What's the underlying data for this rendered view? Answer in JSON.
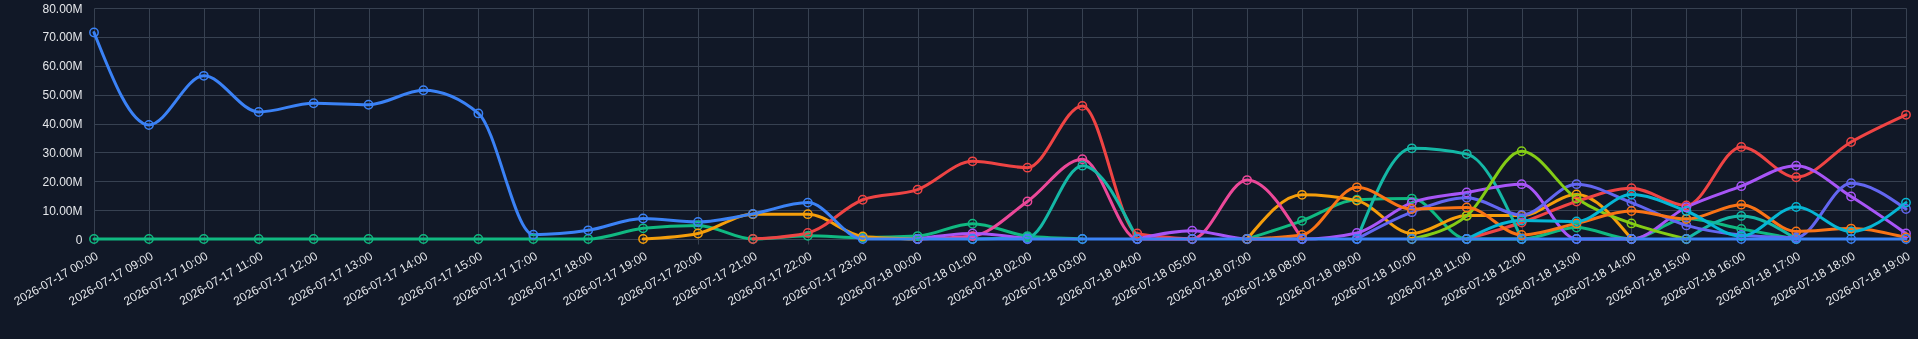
{
  "chart_data": {
    "type": "line",
    "categories": [
      "2026-07-17 00:00",
      "2026-07-17 09:00",
      "2026-07-17 10:00",
      "2026-07-17 11:00",
      "2026-07-17 12:00",
      "2026-07-17 13:00",
      "2026-07-17 14:00",
      "2026-07-17 15:00",
      "2026-07-17 17:00",
      "2026-07-17 18:00",
      "2026-07-17 19:00",
      "2026-07-17 20:00",
      "2026-07-17 21:00",
      "2026-07-17 22:00",
      "2026-07-17 23:00",
      "2026-07-18 00:00",
      "2026-07-18 01:00",
      "2026-07-18 02:00",
      "2026-07-18 03:00",
      "2026-07-18 04:00",
      "2026-07-18 05:00",
      "2026-07-18 07:00",
      "2026-07-18 08:00",
      "2026-07-18 09:00",
      "2026-07-18 10:00",
      "2026-07-18 11:00",
      "2026-07-18 12:00",
      "2026-07-18 13:00",
      "2026-07-18 14:00",
      "2026-07-18 15:00",
      "2026-07-18 16:00",
      "2026-07-18 17:00",
      "2026-07-18 18:00",
      "2026-07-18 19:00"
    ],
    "series": [
      {
        "color": "#10b981",
        "values": [
          0,
          0,
          0,
          0,
          0,
          0,
          0,
          0,
          0,
          0,
          3.7,
          4.7,
          0,
          1.1,
          0.5,
          1,
          5.3,
          1,
          0,
          null,
          null,
          0,
          6.3,
          13.6,
          14,
          0,
          0,
          4,
          0,
          7,
          3.5,
          0,
          null,
          null
        ]
      },
      {
        "color": "#f59e0b",
        "values": [
          null,
          null,
          null,
          null,
          null,
          null,
          null,
          null,
          null,
          null,
          0,
          1.9,
          8.6,
          8.6,
          0.9,
          0,
          null,
          null,
          null,
          null,
          null,
          0,
          15.3,
          13.3,
          1.9,
          8.1,
          8.1,
          15.4,
          0,
          null,
          null,
          null,
          null,
          null
        ]
      },
      {
        "color": "#ef4444",
        "values": [
          null,
          null,
          null,
          null,
          null,
          null,
          null,
          null,
          null,
          null,
          null,
          null,
          0,
          2.1,
          13.6,
          17.1,
          26.9,
          24.7,
          46.1,
          1.9,
          0,
          null,
          null,
          null,
          null,
          0,
          5.7,
          13,
          17.6,
          11.6,
          31.9,
          21.4,
          33.6,
          43
        ]
      },
      {
        "color": "#ec4899",
        "values": [
          null,
          null,
          null,
          null,
          null,
          null,
          null,
          null,
          null,
          null,
          null,
          null,
          null,
          null,
          null,
          0,
          1,
          13,
          27.6,
          0,
          0,
          20.4,
          0,
          null,
          null,
          null,
          null,
          null,
          null,
          null,
          null,
          null,
          null,
          null
        ]
      },
      {
        "color": "#14b8a6",
        "values": [
          null,
          null,
          null,
          null,
          null,
          null,
          null,
          null,
          null,
          null,
          null,
          null,
          null,
          null,
          null,
          null,
          0,
          0.5,
          25.4,
          0,
          null,
          null,
          null,
          0,
          31.4,
          29.4,
          0,
          null,
          null,
          0,
          8,
          0,
          null,
          null
        ]
      },
      {
        "color": "#a855f7",
        "values": [
          null,
          null,
          null,
          null,
          null,
          null,
          null,
          null,
          null,
          null,
          null,
          null,
          null,
          null,
          null,
          0,
          1.9,
          0,
          null,
          0,
          2.9,
          0,
          0,
          2.1,
          12.6,
          16.1,
          19,
          0,
          0,
          11,
          18.3,
          25.4,
          14.7,
          1.9
        ]
      },
      {
        "color": "#6366f1",
        "values": [
          null,
          null,
          null,
          null,
          null,
          null,
          null,
          null,
          null,
          null,
          null,
          null,
          null,
          null,
          null,
          null,
          null,
          null,
          null,
          null,
          null,
          null,
          null,
          0,
          9.3,
          14.3,
          8.3,
          19,
          12.6,
          4.7,
          1.4,
          0.5,
          19.3,
          10.4
        ]
      },
      {
        "color": "#84cc16",
        "values": [
          null,
          null,
          null,
          null,
          null,
          null,
          null,
          null,
          null,
          null,
          null,
          null,
          null,
          null,
          null,
          null,
          null,
          null,
          null,
          null,
          null,
          null,
          null,
          null,
          0,
          8,
          30.4,
          14,
          5.4,
          0,
          null,
          null,
          null,
          null
        ]
      },
      {
        "color": "#f97316",
        "values": [
          null,
          null,
          null,
          null,
          null,
          null,
          null,
          null,
          null,
          null,
          null,
          null,
          null,
          null,
          null,
          null,
          null,
          null,
          null,
          null,
          null,
          0,
          1.4,
          17.9,
          10.4,
          10.9,
          1.4,
          5.4,
          9.7,
          6.9,
          11.9,
          2.6,
          3.6,
          0.5
        ]
      },
      {
        "color": "#06b6d4",
        "values": [
          null,
          null,
          null,
          null,
          null,
          null,
          null,
          null,
          null,
          null,
          null,
          null,
          null,
          null,
          null,
          null,
          null,
          null,
          null,
          null,
          null,
          null,
          null,
          null,
          null,
          0,
          6.4,
          6.1,
          15.4,
          9.7,
          1,
          11.1,
          2.6,
          12.6
        ]
      },
      {
        "color": "#3b82f6",
        "values": [
          71.5,
          39.5,
          56.5,
          44,
          47,
          46.5,
          51.5,
          43.5,
          1.5,
          3,
          7.1,
          5.9,
          8.7,
          12.6,
          0,
          0,
          0,
          0,
          0,
          0,
          0,
          0,
          0,
          0,
          0,
          0,
          0,
          0,
          0,
          0,
          0,
          0,
          0,
          0
        ]
      }
    ],
    "ylim": [
      0,
      80
    ],
    "yticks": [
      0,
      {
        "value": 10,
        "label": "10.00M"
      },
      {
        "value": 20,
        "label": "20.00M"
      },
      {
        "value": 30,
        "label": "30.00M"
      },
      {
        "value": 40,
        "label": "40.00M"
      },
      {
        "value": 50,
        "label": "50.00M"
      },
      {
        "value": 60,
        "label": "60.00M"
      },
      {
        "value": 70,
        "label": "70.00M"
      },
      {
        "value": 80,
        "label": "80.00M"
      }
    ],
    "grid": true,
    "marker": "circle",
    "line_style": "solid"
  }
}
